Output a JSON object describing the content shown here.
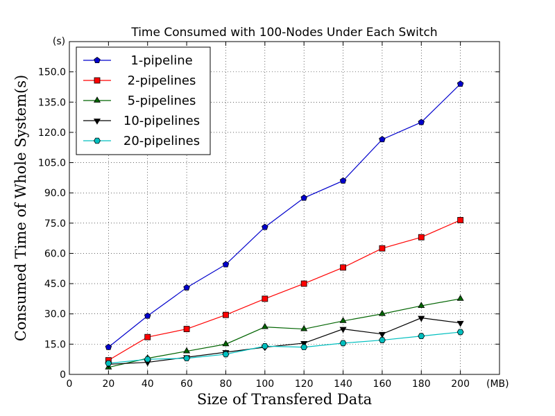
{
  "chart_data": {
    "type": "line",
    "title": "Time Consumed with 100-Nodes Under Each Switch",
    "xlabel": "Size of Transfered Data",
    "ylabel": "Consumed Time of Whole System(s)",
    "x_unit": "(MB)",
    "y_unit": "(s)",
    "xlim": [
      0,
      220
    ],
    "ylim": [
      0,
      165
    ],
    "x_ticks": [
      0,
      20,
      40,
      60,
      80,
      100,
      120,
      140,
      160,
      180,
      200
    ],
    "x_tick_labels": [
      "0",
      "20",
      "40",
      "60",
      "80",
      "100",
      "120",
      "140",
      "160",
      "180",
      "200"
    ],
    "y_ticks": [
      0,
      15,
      30,
      45,
      60,
      75,
      90,
      105,
      120,
      135,
      150
    ],
    "y_tick_labels": [
      "0",
      "15.0",
      "30.0",
      "45.0",
      "60.0",
      "75.0",
      "90.0",
      "105.0",
      "120.0",
      "135.0",
      "150.0"
    ],
    "grid": true,
    "legend_position": "top-left",
    "x": [
      20,
      40,
      60,
      80,
      100,
      120,
      140,
      160,
      180,
      200
    ],
    "series": [
      {
        "name": "1-pipeline",
        "color": "#0000cc",
        "marker": "pentagon",
        "values": [
          13.5,
          29,
          43,
          54.5,
          73,
          87.5,
          96,
          116.5,
          125,
          144
        ]
      },
      {
        "name": "2-pipelines",
        "color": "#ff0000",
        "marker": "square",
        "values": [
          7,
          18.5,
          22.5,
          29.5,
          37.5,
          45,
          53,
          62.5,
          68,
          76.5
        ]
      },
      {
        "name": "5-pipelines",
        "color": "#006400",
        "marker": "triangle-up",
        "values": [
          3.5,
          8,
          11.5,
          15,
          23.5,
          22.5,
          26.5,
          30,
          34,
          37.5
        ]
      },
      {
        "name": "10-pipelines",
        "color": "#000000",
        "marker": "triangle-down",
        "values": [
          5,
          6,
          8.5,
          11,
          13.5,
          15.5,
          22.5,
          20,
          28,
          25.5
        ]
      },
      {
        "name": "20-pipelines",
        "color": "#00bfbf",
        "marker": "hexagon",
        "values": [
          5.5,
          7.5,
          8,
          10,
          14,
          13.5,
          15.5,
          17,
          19,
          21
        ]
      }
    ]
  }
}
